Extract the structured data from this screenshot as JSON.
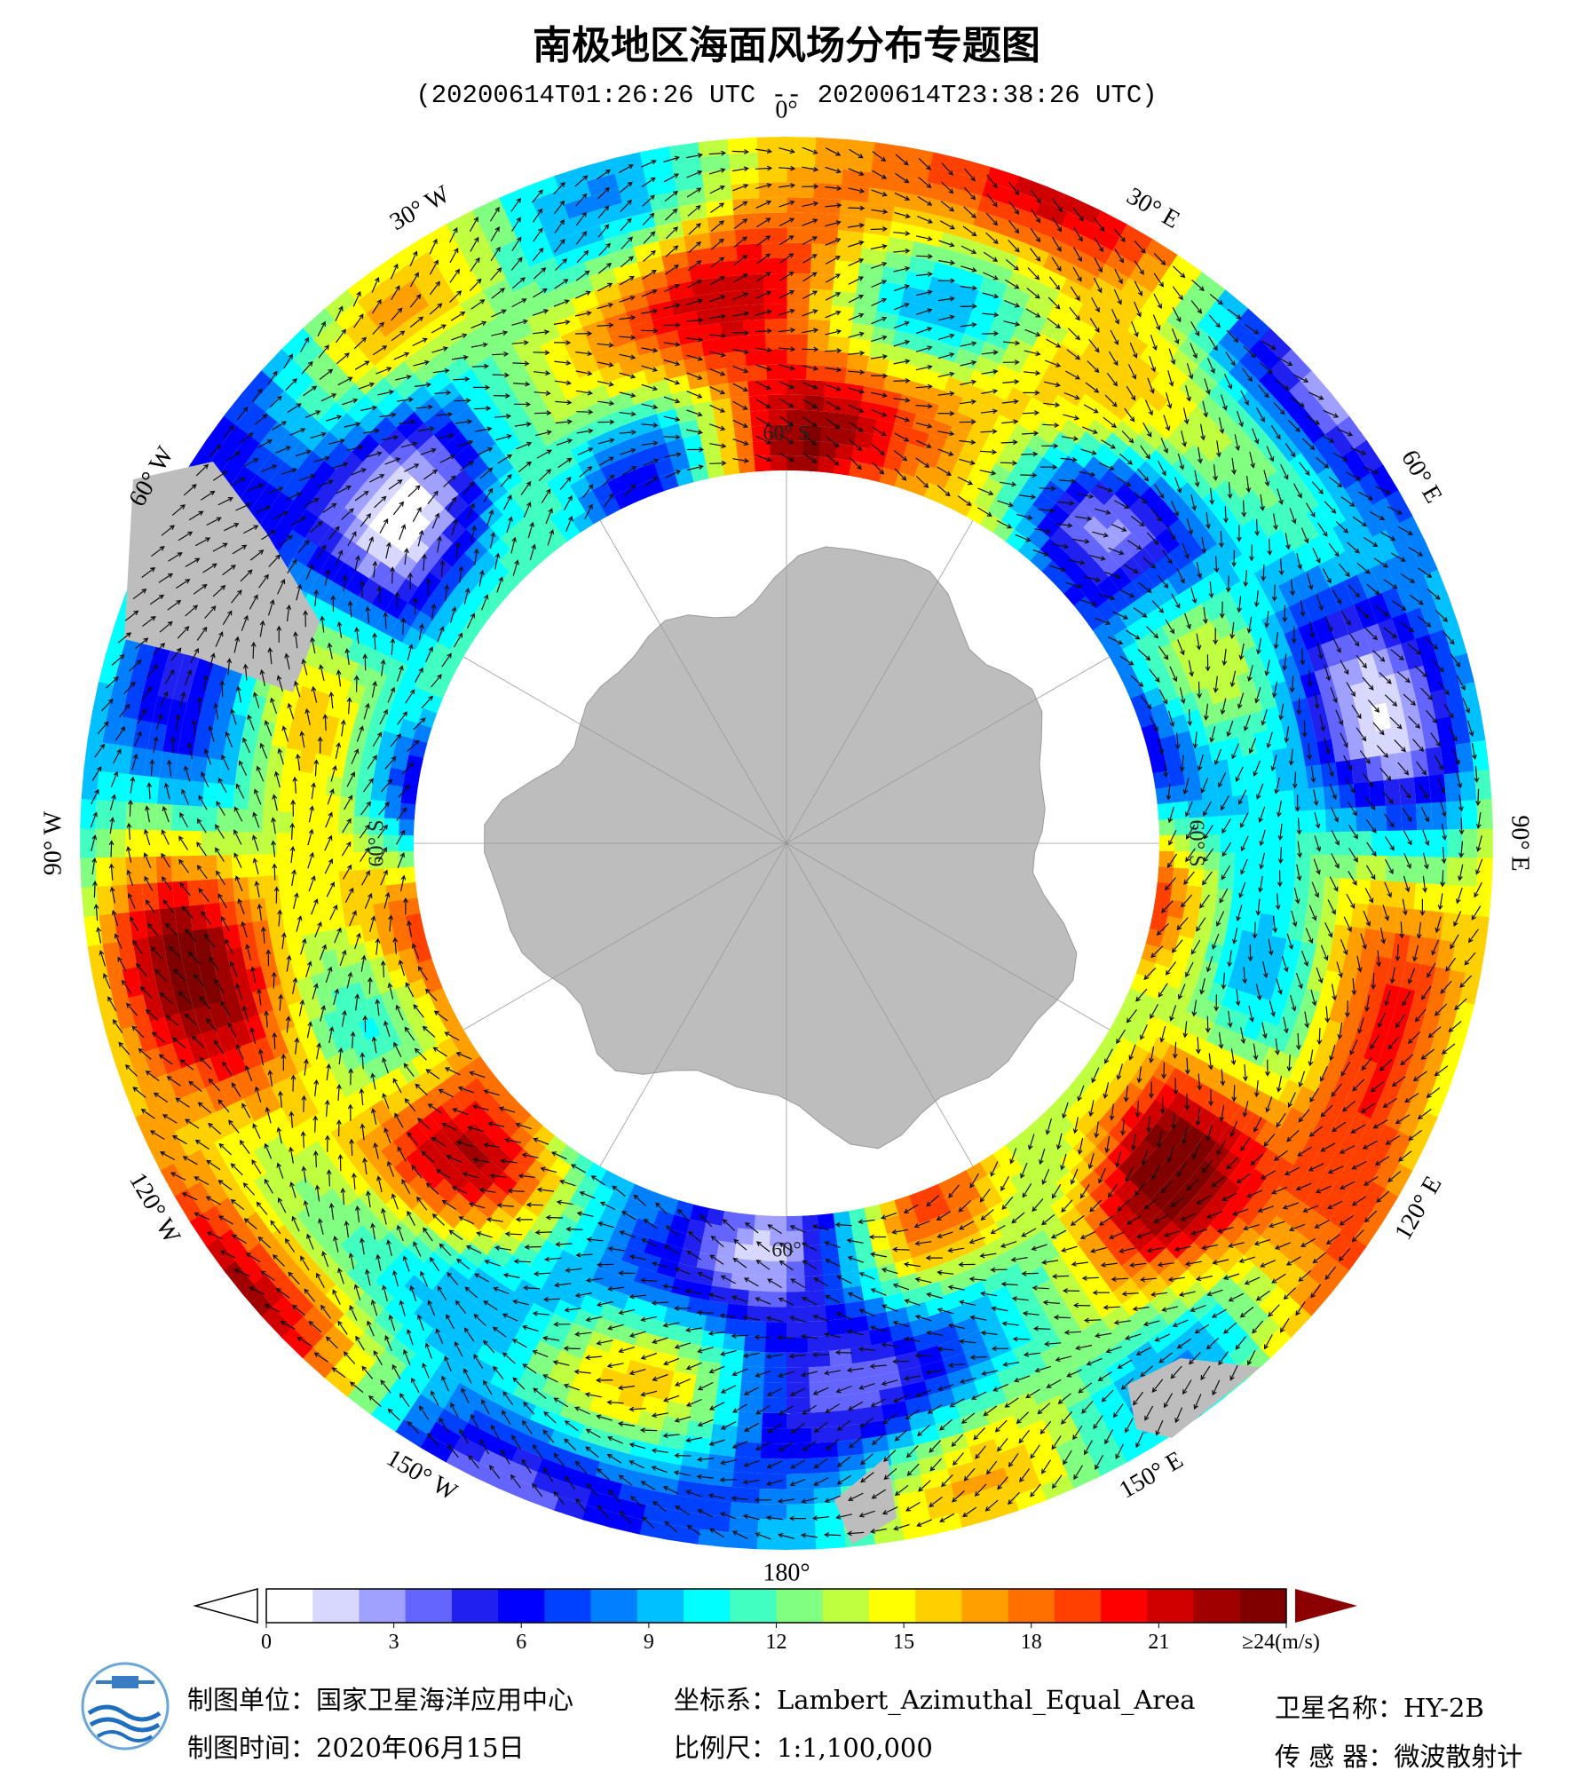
{
  "title": "南极地区海面风场分布专题图",
  "subtitle": "(20200614T01:26:26 UTC -- 20200614T23:38:26 UTC)",
  "longitude_labels": [
    "0°",
    "30° E",
    "60° E",
    "90° E",
    "120° E",
    "150° E",
    "180°",
    "150° W",
    "120° W",
    "90° W",
    "60° W",
    "30° W"
  ],
  "latitude_labels": [
    "60° S",
    "60° S",
    "60° S",
    "60°"
  ],
  "colorbar": {
    "lim": [
      0,
      24
    ],
    "ticks": [
      0,
      3,
      6,
      9,
      12,
      15,
      18,
      {
        "value": 21,
        "label": "21"
      },
      {
        "value": 24,
        "label": "≥24(m/s)"
      }
    ],
    "colors": [
      "#ffffff",
      "#d8d8ff",
      "#a0a0ff",
      "#6464ff",
      "#2020f0",
      "#0000ff",
      "#0040ff",
      "#0080ff",
      "#00c0ff",
      "#00ffff",
      "#40ffc0",
      "#80ff80",
      "#c0ff40",
      "#ffff00",
      "#ffd000",
      "#ffa000",
      "#ff7000",
      "#ff4000",
      "#ff0000",
      "#d00000",
      "#a00000",
      "#800000"
    ],
    "under_color": "#ffffff",
    "over_color": "#8b0000"
  },
  "footer": {
    "unit": "制图单位：国家卫星海洋应用中心",
    "time": "制图时间：2020年06月15日",
    "projection": "坐标系：Lambert_Azimuthal_Equal_Area",
    "scale": "比例尺：1:1,100,000",
    "satellite": "卫星名称：HY-2B",
    "sensor": "传 感 器：微波散射计"
  }
}
